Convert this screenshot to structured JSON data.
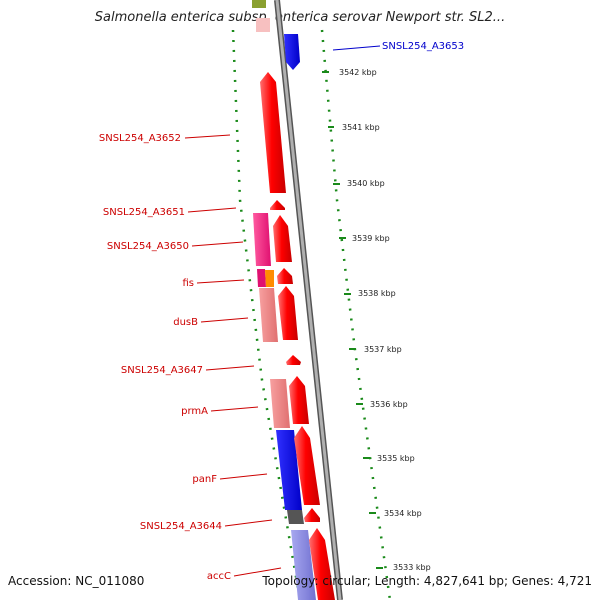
{
  "title": "Salmonella enterica subsp. enterica serovar Newport str. SL2...",
  "accession": "Accession: NC_011080",
  "topology": "Topology: circular; Length: 4,827,641 bp; Genes: 4,721",
  "colors": {
    "forward_gene": "#ff0000",
    "backbone": "#8c8c8c",
    "gc_dots": "#1a8a1a",
    "label_red": "#cc0000",
    "label_blue": "#0000cc"
  },
  "scale_ticks": [
    "3542 kbp",
    "3541 kbp",
    "3540 kbp",
    "3539 kbp",
    "3538 kbp",
    "3537 kbp",
    "3536 kbp",
    "3535 kbp",
    "3534 kbp",
    "3533 kbp"
  ],
  "gene_labels": [
    {
      "text": "SNSL254_A3653",
      "color": "#0000cc"
    },
    {
      "text": "SNSL254_A3652",
      "color": "#cc0000"
    },
    {
      "text": "SNSL254_A3651",
      "color": "#cc0000"
    },
    {
      "text": "SNSL254_A3650",
      "color": "#cc0000"
    },
    {
      "text": "fis",
      "color": "#cc0000"
    },
    {
      "text": "dusB",
      "color": "#cc0000"
    },
    {
      "text": "SNSL254_A3647",
      "color": "#cc0000"
    },
    {
      "text": "prmA",
      "color": "#cc0000"
    },
    {
      "text": "panF",
      "color": "#cc0000"
    },
    {
      "text": "SNSL254_A3644",
      "color": "#cc0000"
    },
    {
      "text": "accC",
      "color": "#cc0000"
    }
  ]
}
